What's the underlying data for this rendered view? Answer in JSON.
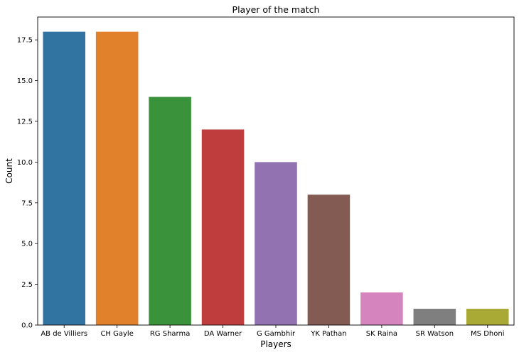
{
  "chart_data": {
    "type": "bar",
    "title": "Player of the match",
    "xlabel": "Players",
    "ylabel": "Count",
    "categories": [
      "AB de Villiers",
      "CH Gayle",
      "RG Sharma",
      "DA Warner",
      "G Gambhir",
      "YK Pathan",
      "SK Raina",
      "SR Watson",
      "MS Dhoni"
    ],
    "values": [
      18,
      18,
      14,
      12,
      10,
      8,
      2,
      1,
      1
    ],
    "colors": [
      "#3274a1",
      "#e1812c",
      "#3a923a",
      "#c03d3e",
      "#9372b2",
      "#845b53",
      "#d684bd",
      "#7f7f7f",
      "#a9aa35"
    ],
    "ylim": [
      0,
      18.9
    ],
    "yticks": [
      "0.0",
      "2.5",
      "5.0",
      "7.5",
      "10.0",
      "12.5",
      "15.0",
      "17.5"
    ],
    "grid": false,
    "legend": "none"
  }
}
